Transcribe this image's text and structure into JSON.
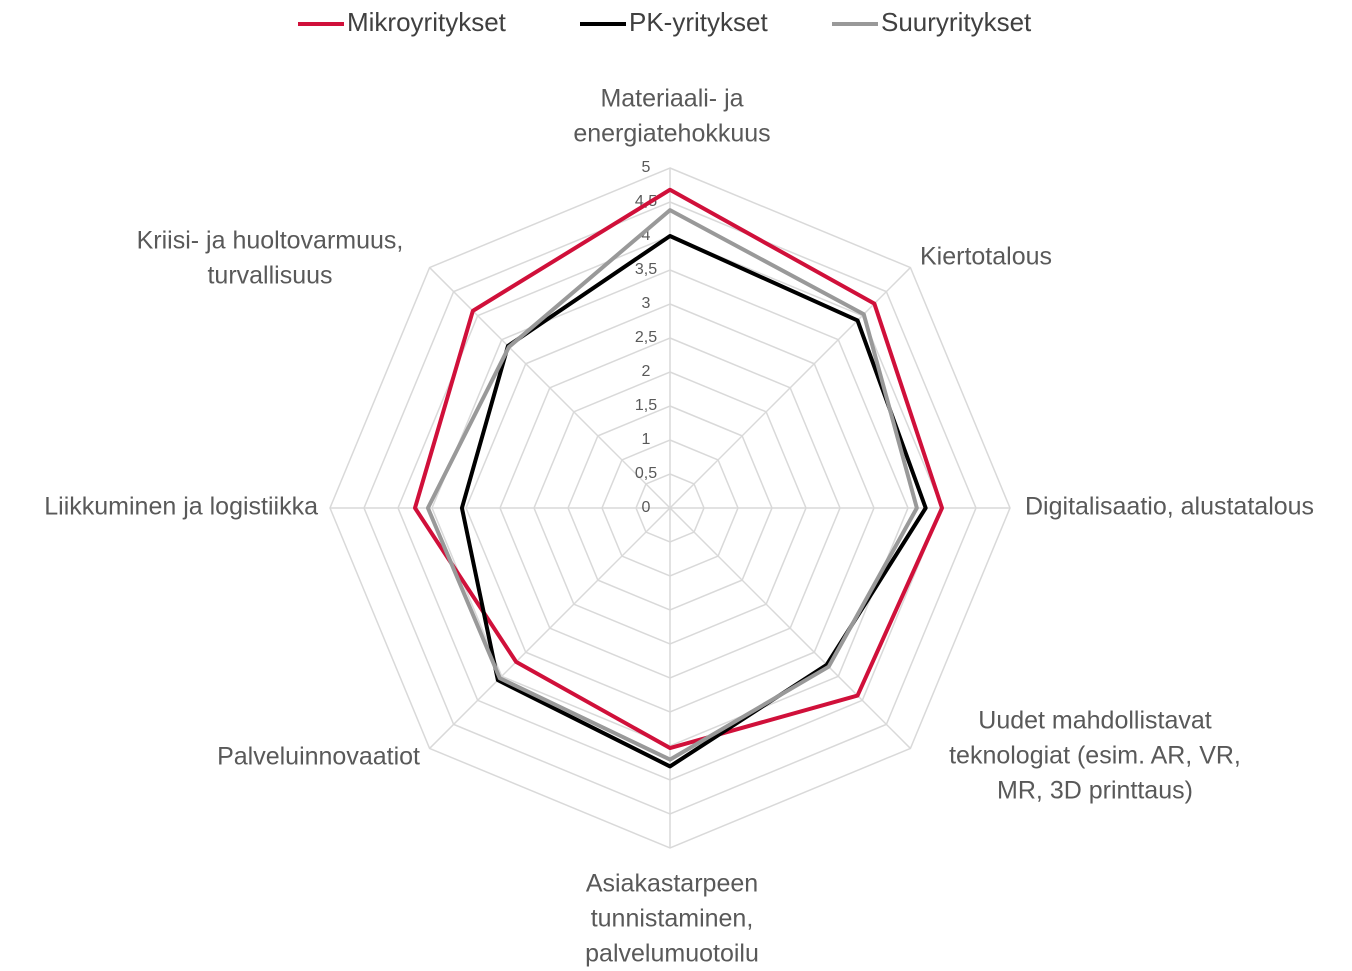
{
  "chart_data": {
    "type": "radar",
    "categories": [
      [
        "Materiaali- ja",
        "energiatehokkuus"
      ],
      [
        "Kiertotalous"
      ],
      [
        "Digitalisaatio, alustatalous"
      ],
      [
        "Uudet mahdollistavat",
        "teknologiat (esim. AR, VR,",
        "MR, 3D printtaus)"
      ],
      [
        "Asiakastarpeen",
        "tunnistaminen,",
        "palvelumuotoilu"
      ],
      [
        "Palveluinnovaatiot"
      ],
      [
        "Liikkuminen ja logistiikka"
      ],
      [
        "Kriisi- ja huoltovarmuus,",
        "turvallisuus"
      ]
    ],
    "series": [
      {
        "name": "Mikroyritykset",
        "color": "#d0103a",
        "values": [
          4.68,
          4.25,
          4.0,
          3.9,
          3.53,
          3.2,
          3.75,
          4.1
        ]
      },
      {
        "name": "PK-yritykset",
        "color": "#000000",
        "values": [
          4.0,
          3.9,
          3.76,
          3.26,
          3.8,
          3.58,
          3.06,
          3.37
        ]
      },
      {
        "name": "Suuryritykset",
        "color": "#999999",
        "values": [
          4.38,
          4.03,
          3.63,
          3.3,
          3.7,
          3.54,
          3.56,
          3.35
        ]
      }
    ],
    "ylim": [
      0,
      5
    ],
    "yticks": [
      0,
      {
        "value": 0.5,
        "label": "0,5"
      },
      1,
      {
        "value": 1.5,
        "label": "1,5"
      },
      2,
      {
        "value": 2.5,
        "label": "2,5"
      },
      3,
      {
        "value": 3.5,
        "label": "3,5"
      },
      4,
      {
        "value": 4.5,
        "label": "4,5"
      },
      5
    ],
    "grid": true,
    "legend": "top"
  }
}
